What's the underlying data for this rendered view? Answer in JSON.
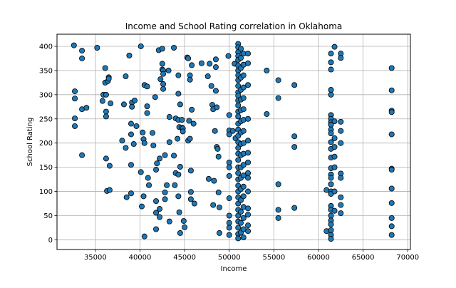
{
  "chart_data": {
    "type": "scatter",
    "title": "Income and School Rating correlation in Oklahoma",
    "xlabel": "Income",
    "ylabel": "School Rating",
    "xlim": [
      30700,
      70300
    ],
    "ylim": [
      -20,
      425
    ],
    "xticks": [
      35000,
      40000,
      45000,
      50000,
      55000,
      60000,
      65000,
      70000
    ],
    "yticks": [
      0,
      50,
      100,
      150,
      200,
      250,
      300,
      350,
      400
    ],
    "xtick_labels": [
      "35000",
      "40000",
      "45000",
      "50000",
      "55000",
      "60000",
      "65000",
      "70000"
    ],
    "ytick_labels": [
      "0",
      "50",
      "100",
      "150",
      "200",
      "250",
      "300",
      "350",
      "400"
    ],
    "grid": true,
    "marker_color": "#1f77b4",
    "marker_edge_color": "#000000",
    "series": [
      {
        "points": [
          [
            32600,
            402
          ],
          [
            32700,
            307
          ],
          [
            32700,
            292
          ],
          [
            32700,
            251
          ],
          [
            32700,
            235
          ],
          [
            33500,
            391
          ],
          [
            33500,
            375
          ],
          [
            33500,
            270
          ],
          [
            33500,
            175
          ],
          [
            34000,
            273
          ],
          [
            35200,
            397
          ],
          [
            35800,
            287
          ],
          [
            35900,
            300
          ],
          [
            36100,
            355
          ],
          [
            36100,
            325
          ],
          [
            36200,
            300
          ],
          [
            36200,
            265
          ],
          [
            36200,
            255
          ],
          [
            36200,
            168
          ],
          [
            36300,
            101
          ],
          [
            36400,
            328
          ],
          [
            36500,
            336
          ],
          [
            36500,
            333
          ],
          [
            36600,
            153
          ],
          [
            36600,
            103
          ],
          [
            36700,
            282
          ],
          [
            38000,
            205
          ],
          [
            38200,
            280
          ],
          [
            38400,
            338
          ],
          [
            38400,
            190
          ],
          [
            38500,
            88
          ],
          [
            38800,
            381
          ],
          [
            39000,
            240
          ],
          [
            39000,
            218
          ],
          [
            39000,
            155
          ],
          [
            39000,
            96
          ],
          [
            39100,
            284
          ],
          [
            39100,
            275
          ],
          [
            39300,
            198
          ],
          [
            39400,
            288
          ],
          [
            39600,
            235
          ],
          [
            40100,
            400
          ],
          [
            40100,
            140
          ],
          [
            40200,
            69
          ],
          [
            40300,
            222
          ],
          [
            40400,
            208
          ],
          [
            40400,
            90
          ],
          [
            40500,
            320
          ],
          [
            40500,
            200
          ],
          [
            40500,
            7
          ],
          [
            40800,
            317
          ],
          [
            40800,
            276
          ],
          [
            40800,
            262
          ],
          [
            40900,
            128
          ],
          [
            41000,
            113
          ],
          [
            41400,
            221
          ],
          [
            41500,
            195
          ],
          [
            41700,
            295
          ],
          [
            41800,
            145
          ],
          [
            41800,
            80
          ],
          [
            41800,
            56
          ],
          [
            41800,
            22
          ],
          [
            41900,
            158
          ],
          [
            42100,
            392
          ],
          [
            42200,
            168
          ],
          [
            42200,
            64
          ],
          [
            42200,
            47
          ],
          [
            42300,
            332
          ],
          [
            42500,
            395
          ],
          [
            42500,
            364
          ],
          [
            42500,
            352
          ],
          [
            42600,
            350
          ],
          [
            42600,
            343
          ],
          [
            42600,
            322
          ],
          [
            42600,
            312
          ],
          [
            42800,
            175
          ],
          [
            42800,
            98
          ],
          [
            42800,
            84
          ],
          [
            43000,
            113
          ],
          [
            43200,
            350
          ],
          [
            43300,
            254
          ],
          [
            43300,
            202
          ],
          [
            43300,
            38
          ],
          [
            43800,
            397
          ],
          [
            43800,
            174
          ],
          [
            43900,
            113
          ],
          [
            44000,
            251
          ],
          [
            44000,
            138
          ],
          [
            44200,
            209
          ],
          [
            44300,
            340
          ],
          [
            44300,
            302
          ],
          [
            44300,
            248
          ],
          [
            44300,
            135
          ],
          [
            44300,
            90
          ],
          [
            44400,
            233
          ],
          [
            44400,
            57
          ],
          [
            44500,
            280
          ],
          [
            44500,
            151
          ],
          [
            44500,
            14
          ],
          [
            44700,
            248
          ],
          [
            44700,
            232
          ],
          [
            44800,
            230
          ],
          [
            44800,
            224
          ],
          [
            44900,
            39
          ],
          [
            45000,
            26
          ],
          [
            45300,
            377
          ],
          [
            45400,
            375
          ],
          [
            45400,
            205
          ],
          [
            45500,
            246
          ],
          [
            45600,
            340
          ],
          [
            45600,
            331
          ],
          [
            45600,
            209
          ],
          [
            45700,
            143
          ],
          [
            45700,
            99
          ],
          [
            45700,
            84
          ],
          [
            45800,
            361
          ],
          [
            45800,
            269
          ],
          [
            46000,
            240
          ],
          [
            46100,
            75
          ],
          [
            46900,
            365
          ],
          [
            47600,
            338
          ],
          [
            47700,
            126
          ],
          [
            47800,
            364
          ],
          [
            48000,
            318
          ],
          [
            48100,
            279
          ],
          [
            48200,
            270
          ],
          [
            48200,
            72
          ],
          [
            48300,
            122
          ],
          [
            48400,
            225
          ],
          [
            48500,
            373
          ],
          [
            48500,
            357
          ],
          [
            48500,
            308
          ],
          [
            48600,
            274
          ],
          [
            48600,
            192
          ],
          [
            48700,
            188
          ],
          [
            48800,
            172
          ],
          [
            48800,
            98
          ],
          [
            48900,
            67
          ],
          [
            48900,
            14
          ],
          [
            49900,
            380
          ],
          [
            50000,
            258
          ],
          [
            50000,
            226
          ],
          [
            50000,
            218
          ],
          [
            50000,
            160
          ],
          [
            50000,
            150
          ],
          [
            50000,
            132
          ],
          [
            50000,
            86
          ],
          [
            50000,
            50
          ],
          [
            50000,
            35
          ],
          [
            50000,
            25
          ],
          [
            50000,
            10
          ],
          [
            50400,
            225
          ],
          [
            50600,
            364
          ],
          [
            50700,
            210
          ],
          [
            51000,
            405
          ],
          [
            51000,
            398
          ],
          [
            51000,
            388
          ],
          [
            51000,
            380
          ],
          [
            51000,
            372
          ],
          [
            51000,
            360
          ],
          [
            51000,
            350
          ],
          [
            51000,
            340
          ],
          [
            51000,
            330
          ],
          [
            51000,
            318
          ],
          [
            51000,
            305
          ],
          [
            51000,
            298
          ],
          [
            51000,
            288
          ],
          [
            51000,
            278
          ],
          [
            51000,
            265
          ],
          [
            51000,
            255
          ],
          [
            51000,
            240
          ],
          [
            51000,
            228
          ],
          [
            51000,
            215
          ],
          [
            51000,
            202
          ],
          [
            51000,
            190
          ],
          [
            51000,
            178
          ],
          [
            51000,
            165
          ],
          [
            51000,
            150
          ],
          [
            51000,
            138
          ],
          [
            51000,
            125
          ],
          [
            51000,
            112
          ],
          [
            51000,
            100
          ],
          [
            51000,
            88
          ],
          [
            51000,
            75
          ],
          [
            51000,
            62
          ],
          [
            51000,
            50
          ],
          [
            51000,
            38
          ],
          [
            51000,
            25
          ],
          [
            51000,
            12
          ],
          [
            51000,
            3
          ],
          [
            51300,
            395
          ],
          [
            51300,
            376
          ],
          [
            51300,
            355
          ],
          [
            51300,
            335
          ],
          [
            51300,
            310
          ],
          [
            51300,
            290
          ],
          [
            51300,
            268
          ],
          [
            51300,
            245
          ],
          [
            51300,
            222
          ],
          [
            51300,
            198
          ],
          [
            51300,
            175
          ],
          [
            51300,
            150
          ],
          [
            51300,
            128
          ],
          [
            51300,
            105
          ],
          [
            51300,
            82
          ],
          [
            51300,
            58
          ],
          [
            51300,
            35
          ],
          [
            51300,
            15
          ],
          [
            51600,
            385
          ],
          [
            51600,
            362
          ],
          [
            51600,
            340
          ],
          [
            51600,
            315
          ],
          [
            51600,
            293
          ],
          [
            51600,
            270
          ],
          [
            51600,
            248
          ],
          [
            51600,
            225
          ],
          [
            51600,
            200
          ],
          [
            51600,
            178
          ],
          [
            51600,
            155
          ],
          [
            51600,
            133
          ],
          [
            51600,
            110
          ],
          [
            51600,
            90
          ],
          [
            51600,
            68
          ],
          [
            51600,
            45
          ],
          [
            51600,
            22
          ],
          [
            51600,
            5
          ],
          [
            52100,
            385
          ],
          [
            52100,
            365
          ],
          [
            52100,
            320
          ],
          [
            52100,
            250
          ],
          [
            52100,
            205
          ],
          [
            52100,
            180
          ],
          [
            52100,
            160
          ],
          [
            52100,
            138
          ],
          [
            52100,
            128
          ],
          [
            52100,
            100
          ],
          [
            52100,
            65
          ],
          [
            52100,
            52
          ],
          [
            52100,
            30
          ],
          [
            52100,
            18
          ],
          [
            54200,
            350
          ],
          [
            54200,
            260
          ],
          [
            55500,
            330
          ],
          [
            55500,
            293
          ],
          [
            55500,
            115
          ],
          [
            55500,
            62
          ],
          [
            55500,
            45
          ],
          [
            57300,
            320
          ],
          [
            57300,
            214
          ],
          [
            57300,
            192
          ],
          [
            57300,
            66
          ],
          [
            60900,
            103
          ],
          [
            60900,
            18
          ],
          [
            61400,
            385
          ],
          [
            61400,
            367
          ],
          [
            61400,
            352
          ],
          [
            61400,
            310
          ],
          [
            61400,
            300
          ],
          [
            61400,
            258
          ],
          [
            61400,
            250
          ],
          [
            61400,
            243
          ],
          [
            61400,
            238
          ],
          [
            61400,
            228
          ],
          [
            61400,
            220
          ],
          [
            61400,
            202
          ],
          [
            61400,
            188
          ],
          [
            61400,
            170
          ],
          [
            61400,
            148
          ],
          [
            61400,
            135
          ],
          [
            61400,
            128
          ],
          [
            61400,
            115
          ],
          [
            61400,
            100
          ],
          [
            61400,
            95
          ],
          [
            61400,
            70
          ],
          [
            61400,
            62
          ],
          [
            61400,
            50
          ],
          [
            61400,
            40
          ],
          [
            61400,
            32
          ],
          [
            61400,
            20
          ],
          [
            61400,
            10
          ],
          [
            61400,
            2
          ],
          [
            61800,
            399
          ],
          [
            61800,
            245
          ],
          [
            61800,
            210
          ],
          [
            61800,
            192
          ],
          [
            61800,
            172
          ],
          [
            61800,
            150
          ],
          [
            61800,
            100
          ],
          [
            61800,
            60
          ],
          [
            62500,
            385
          ],
          [
            62500,
            376
          ],
          [
            62500,
            244
          ],
          [
            62500,
            225
          ],
          [
            62500,
            200
          ],
          [
            62500,
            137
          ],
          [
            62500,
            128
          ],
          [
            62500,
            88
          ],
          [
            62500,
            72
          ],
          [
            62500,
            55
          ],
          [
            68200,
            355
          ],
          [
            68200,
            309
          ],
          [
            68200,
            267
          ],
          [
            68200,
            264
          ],
          [
            68200,
            218
          ],
          [
            68200,
            147
          ],
          [
            68200,
            145
          ],
          [
            68200,
            106
          ],
          [
            68200,
            76
          ],
          [
            68200,
            45
          ],
          [
            68200,
            28
          ],
          [
            68200,
            10
          ]
        ]
      }
    ]
  }
}
